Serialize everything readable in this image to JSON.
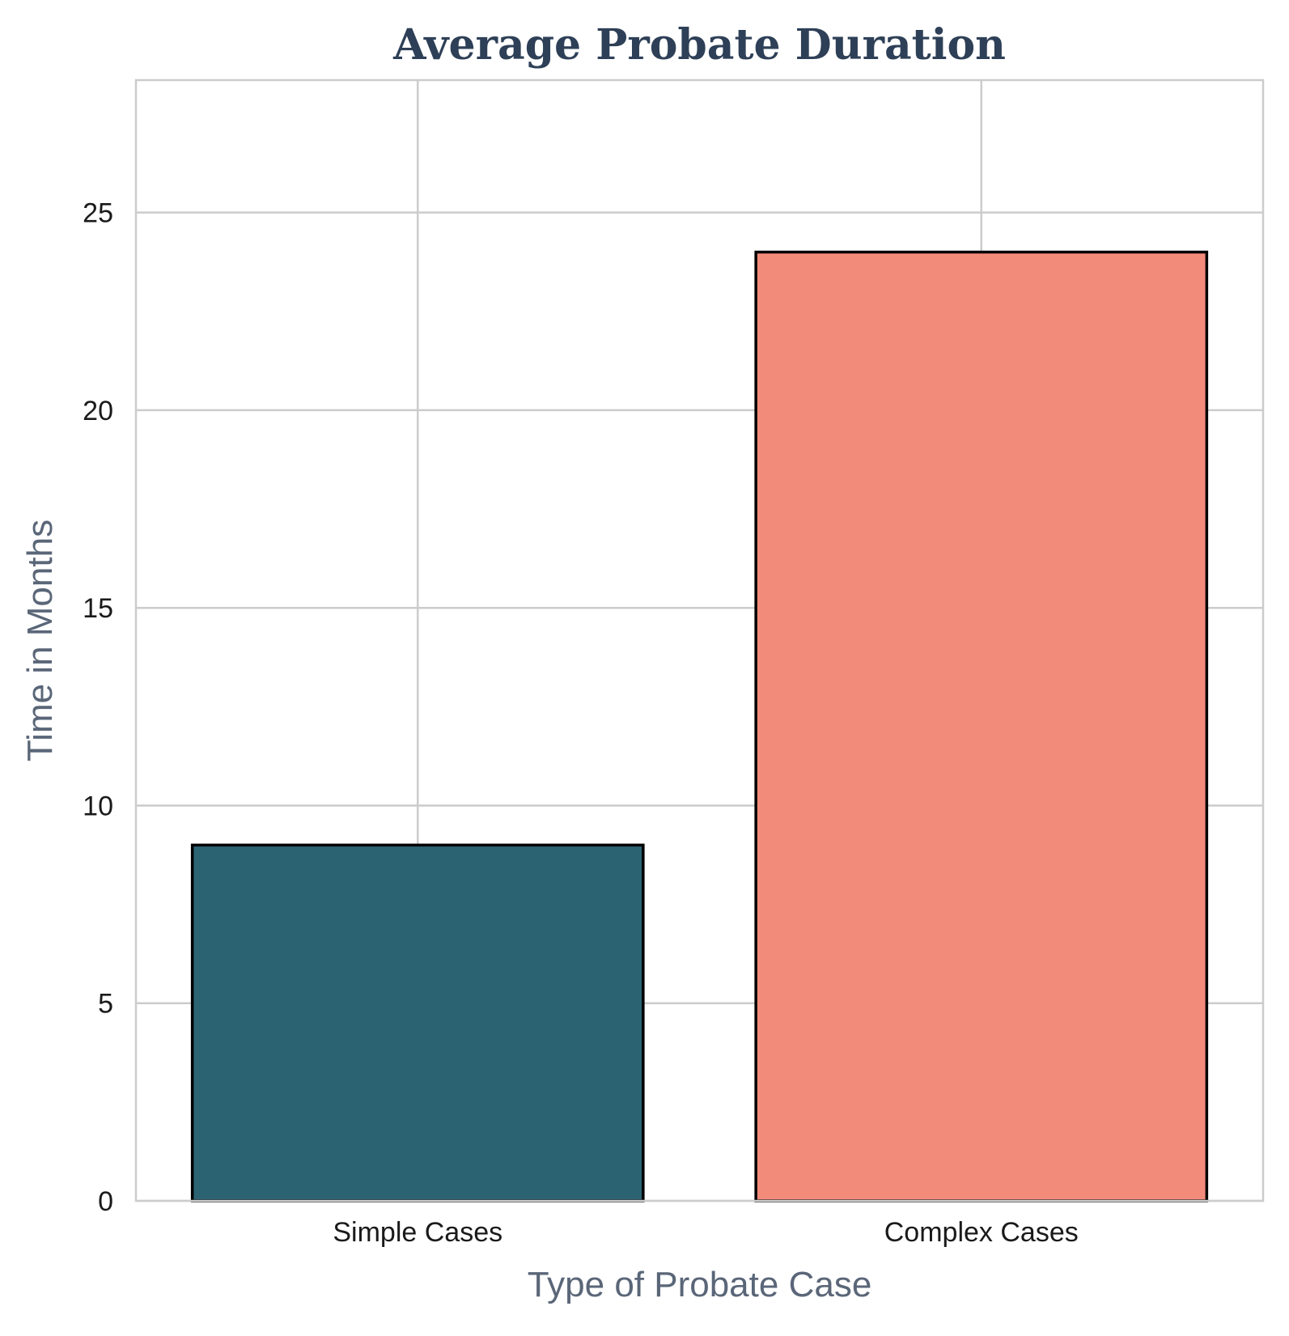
{
  "chart_data": {
    "type": "bar",
    "title": "Average Probate Duration",
    "xlabel": "Type of Probate Case",
    "ylabel": "Time in Months",
    "categories": [
      "Simple Cases",
      "Complex Cases"
    ],
    "values": [
      9,
      24
    ],
    "ylim": [
      0,
      28.35
    ],
    "yticks": [
      0,
      5,
      10,
      15,
      20,
      25
    ],
    "grid": true,
    "legend": "none",
    "colors": {
      "bars": [
        "#2c6373",
        "#f38b7b"
      ],
      "bar_edge": "#000000",
      "title": "#2e4057",
      "axis_label": "#5a6678",
      "grid": "#cccccc"
    }
  }
}
